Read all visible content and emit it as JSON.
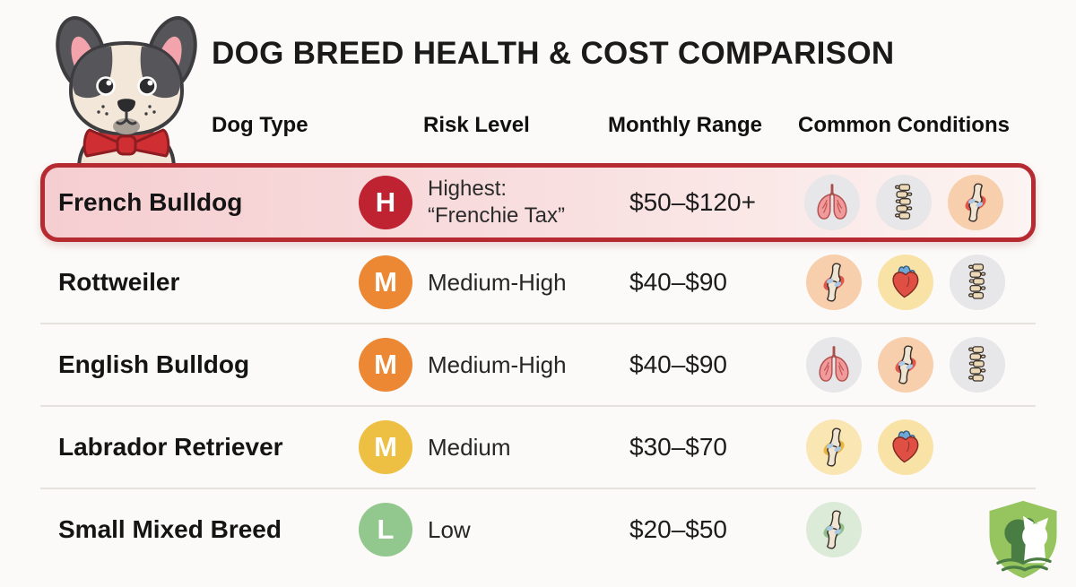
{
  "title": "DOG BREED HEALTH & COST COMPARISON",
  "columns": {
    "dog_type": "Dog Type",
    "risk_level": "Risk Level",
    "monthly_range": "Monthly Range",
    "common_conditions": "Common Conditions"
  },
  "rows": [
    {
      "name": "French Bulldog",
      "risk": {
        "letter": "H",
        "color": "#bf2231",
        "label": "Highest:",
        "sublabel": "“Frenchie Tax”"
      },
      "monthly_range": "$50–$120+",
      "highlighted": true,
      "conditions": [
        {
          "name": "lungs",
          "bg": "#e7e6e9"
        },
        {
          "name": "spine",
          "bg": "#e7e6e9"
        },
        {
          "name": "joint",
          "bg": "#f8cfac",
          "accent": "#e2574c"
        }
      ]
    },
    {
      "name": "Rottweiler",
      "risk": {
        "letter": "M",
        "color": "#ec8733",
        "label": "Medium-High",
        "sublabel": ""
      },
      "monthly_range": "$40–$90",
      "highlighted": false,
      "conditions": [
        {
          "name": "joint",
          "bg": "#f8cfac",
          "accent": "#e2574c"
        },
        {
          "name": "heart",
          "bg": "#f9e2a5"
        },
        {
          "name": "spine",
          "bg": "#e7e6e9"
        }
      ]
    },
    {
      "name": "English Bulldog",
      "risk": {
        "letter": "M",
        "color": "#ec8733",
        "label": "Medium-High",
        "sublabel": ""
      },
      "monthly_range": "$40–$90",
      "highlighted": false,
      "conditions": [
        {
          "name": "lungs",
          "bg": "#e7e6e9"
        },
        {
          "name": "joint",
          "bg": "#f8cfac",
          "accent": "#e2574c"
        },
        {
          "name": "spine",
          "bg": "#e7e6e9"
        }
      ]
    },
    {
      "name": "Labrador Retriever",
      "risk": {
        "letter": "M",
        "color": "#edc044",
        "label": "Medium",
        "sublabel": ""
      },
      "monthly_range": "$30–$70",
      "highlighted": false,
      "conditions": [
        {
          "name": "joint",
          "bg": "#f9e6b3",
          "accent": "#e8b63e"
        },
        {
          "name": "heart",
          "bg": "#f9e2a5"
        }
      ]
    },
    {
      "name": "Small Mixed Breed",
      "risk": {
        "letter": "L",
        "color": "#92c88e",
        "label": "Low",
        "sublabel": ""
      },
      "monthly_range": "$20–$50",
      "highlighted": false,
      "conditions": [
        {
          "name": "joint",
          "bg": "#dcead8",
          "accent": "#8fc08b"
        }
      ]
    }
  ],
  "icons": {
    "mascot": "french-bulldog-mascot",
    "logo": "dog-cat-shield-logo",
    "condition_types": [
      "lungs",
      "spine",
      "joint",
      "heart"
    ]
  },
  "theme": {
    "page_bg": "#fbfaf8",
    "highlight_border": "#b62a32",
    "highlight_bg_start": "#f5ced1",
    "highlight_bg_end": "#fcf4f2",
    "divider": "#e6e2dd"
  },
  "chart_data": {
    "type": "table",
    "title": "DOG BREED HEALTH & COST COMPARISON",
    "columns": [
      "Dog Type",
      "Risk Level",
      "Monthly Range",
      "Common Conditions"
    ],
    "rows": [
      [
        "French Bulldog",
        "H — Highest: “Frenchie Tax”",
        "$50–$120+",
        "lungs, spine, joint"
      ],
      [
        "Rottweiler",
        "M — Medium-High",
        "$40–$90",
        "joint, heart, spine"
      ],
      [
        "English Bulldog",
        "M — Medium-High",
        "$40–$90",
        "lungs, joint, spine"
      ],
      [
        "Labrador Retriever",
        "M — Medium",
        "$30–$70",
        "joint, heart"
      ],
      [
        "Small Mixed Breed",
        "L — Low",
        "$20–$50",
        "joint"
      ]
    ],
    "highlighted_row": "French Bulldog",
    "legend_position": "none",
    "grid": "horizontal-dividers"
  }
}
